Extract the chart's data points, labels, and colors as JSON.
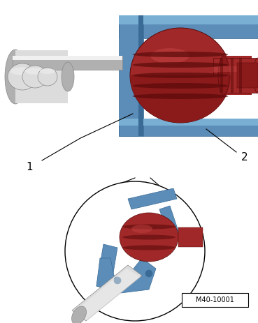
{
  "bg_color": "#ffffff",
  "label1": "1",
  "label2": "2",
  "ref_code": "M40-10001",
  "blue_main": "#5b8db8",
  "blue_dark": "#3a6b96",
  "blue_light": "#7aafd4",
  "red_main": "#8b1a1a",
  "red_dark": "#5a0a0a",
  "red_mid": "#a02828",
  "red_light": "#c04040",
  "gray_light": "#dcdcdc",
  "gray_mid": "#b0b0b0",
  "gray_dark": "#888888",
  "gray_white": "#f0f0f0",
  "black": "#000000",
  "fig_width": 3.69,
  "fig_height": 4.63,
  "dpi": 100
}
